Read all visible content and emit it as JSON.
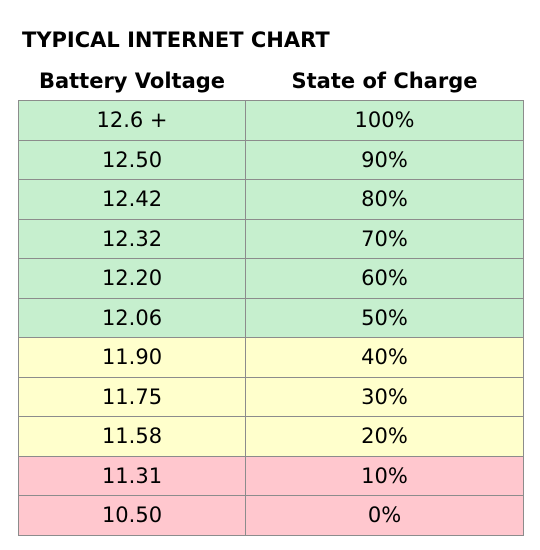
{
  "title": "TYPICAL INTERNET CHART",
  "table": {
    "header": [
      "Battery Voltage",
      "State of Charge"
    ],
    "rows": [
      {
        "cells": [
          "12.6 +",
          "100%"
        ],
        "color": "#c6efce"
      },
      {
        "cells": [
          "12.50",
          "90%"
        ],
        "color": "#c6efce"
      },
      {
        "cells": [
          "12.42",
          "80%"
        ],
        "color": "#c6efce"
      },
      {
        "cells": [
          "12.32",
          "70%"
        ],
        "color": "#c6efce"
      },
      {
        "cells": [
          "12.20",
          "60%"
        ],
        "color": "#c6efce"
      },
      {
        "cells": [
          "12.06",
          "50%"
        ],
        "color": "#c6efce"
      },
      {
        "cells": [
          "11.90",
          "40%"
        ],
        "color": "#ffffcc"
      },
      {
        "cells": [
          "11.75",
          "30%"
        ],
        "color": "#ffffcc"
      },
      {
        "cells": [
          "11.58",
          "20%"
        ],
        "color": "#ffffcc"
      },
      {
        "cells": [
          "11.31",
          "10%"
        ],
        "color": "#ffc7ce"
      },
      {
        "cells": [
          "10.50",
          "0%"
        ],
        "color": "#ffc7ce"
      }
    ]
  }
}
